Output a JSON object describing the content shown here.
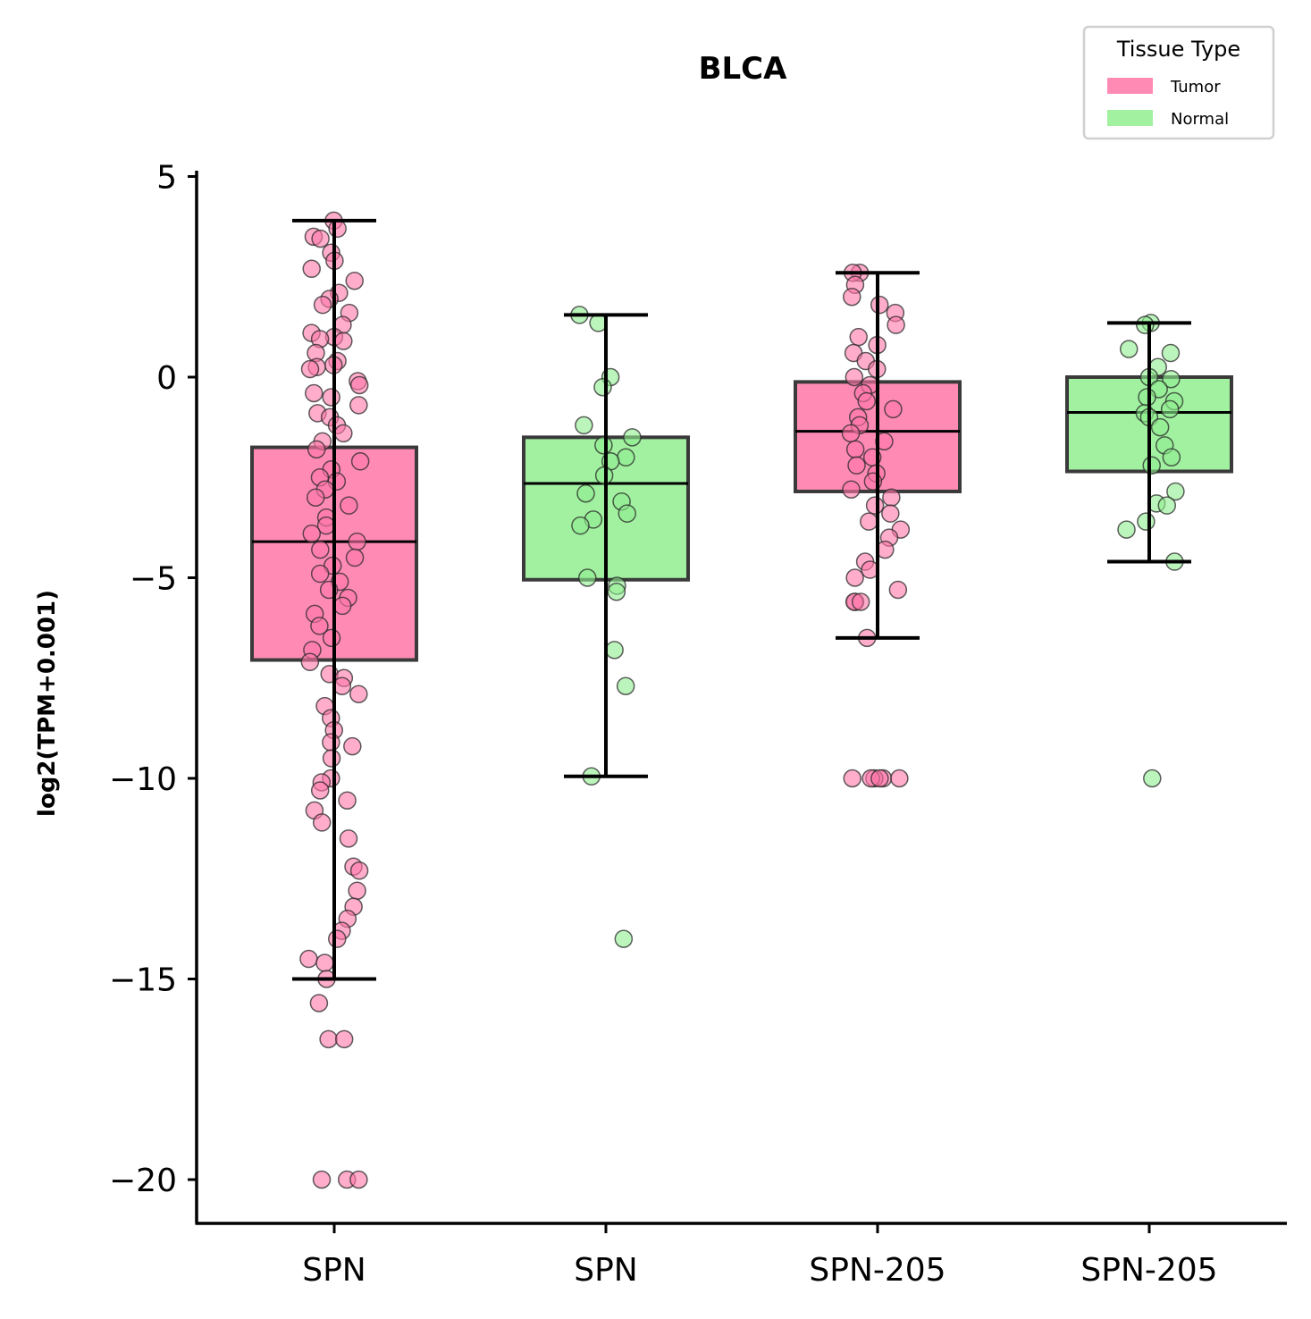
{
  "chart_data": {
    "type": "box",
    "title": "BLCA",
    "xlabel": "",
    "ylabel": "log2(TPM+0.001)",
    "ylim": [
      -21.2,
      5.2
    ],
    "yticks": [
      5,
      0,
      -5,
      -10,
      -15,
      -20
    ],
    "ytick_labels": [
      "5",
      "0",
      "−5",
      "−10",
      "−15",
      "−20"
    ],
    "categories": [
      "SPN",
      "SPN",
      "SPN-205",
      "SPN-205"
    ],
    "legend": {
      "title": "Tissue Type",
      "placement": "top-right",
      "entries": [
        {
          "label": "Tumor",
          "color": "#ff77a8"
        },
        {
          "label": "Normal",
          "color": "#90ee90"
        }
      ]
    },
    "series": [
      {
        "category": "SPN",
        "tissue": "Tumor",
        "color": "#ff77a8",
        "q1": -7.05,
        "median": -4.1,
        "q3": -1.75,
        "whisker_low": -15.0,
        "whisker_high": 3.9,
        "points": [
          3.9,
          3.7,
          3.5,
          3.45,
          3.1,
          2.9,
          2.7,
          2.4,
          2.1,
          1.95,
          1.8,
          1.6,
          1.3,
          1.1,
          1.0,
          0.95,
          0.9,
          0.6,
          0.4,
          0.3,
          0.25,
          0.2,
          -0.1,
          -0.2,
          -0.4,
          -0.5,
          -0.7,
          -0.9,
          -1.0,
          -1.2,
          -1.4,
          -1.6,
          -1.8,
          -2.1,
          -2.3,
          -2.5,
          -2.6,
          -2.8,
          -3.0,
          -3.2,
          -3.5,
          -3.7,
          -3.9,
          -4.1,
          -4.3,
          -4.5,
          -4.7,
          -4.9,
          -5.1,
          -5.3,
          -5.5,
          -5.7,
          -5.9,
          -6.2,
          -6.5,
          -6.8,
          -7.1,
          -7.4,
          -7.5,
          -7.7,
          -7.9,
          -8.2,
          -8.5,
          -8.8,
          -9.1,
          -9.2,
          -9.5,
          -10.0,
          -10.1,
          -10.3,
          -10.55,
          -10.8,
          -11.1,
          -11.5,
          -12.2,
          -12.3,
          -12.8,
          -13.2,
          -13.5,
          -13.8,
          -14.0,
          -14.5,
          -14.6,
          -15.0,
          -15.6,
          -16.5,
          -16.5,
          -20.0,
          -20.0,
          -20.0
        ]
      },
      {
        "category": "SPN",
        "tissue": "Normal",
        "color": "#90ee90",
        "q1": -5.05,
        "median": -2.65,
        "q3": -1.5,
        "whisker_low": -9.95,
        "whisker_high": 1.55,
        "points": [
          1.55,
          1.35,
          0.0,
          -0.25,
          -1.2,
          -1.5,
          -1.7,
          -2.0,
          -2.1,
          -2.45,
          -2.9,
          -3.1,
          -3.4,
          -3.55,
          -3.7,
          -5.0,
          -5.2,
          -5.35,
          -6.8,
          -7.7,
          -9.95,
          -14.0
        ]
      },
      {
        "category": "SPN-205",
        "tissue": "Tumor",
        "color": "#ff77a8",
        "q1": -2.85,
        "median": -1.35,
        "q3": -0.12,
        "whisker_low": -6.5,
        "whisker_high": 2.6,
        "points": [
          2.6,
          2.6,
          2.3,
          2.0,
          1.8,
          1.6,
          1.3,
          1.0,
          0.8,
          0.6,
          0.4,
          0.2,
          0.0,
          -0.2,
          -0.4,
          -0.6,
          -0.8,
          -1.0,
          -1.2,
          -1.4,
          -1.6,
          -1.8,
          -2.0,
          -2.2,
          -2.4,
          -2.6,
          -2.8,
          -3.0,
          -3.2,
          -3.4,
          -3.6,
          -3.8,
          -4.0,
          -4.3,
          -4.6,
          -4.8,
          -5.0,
          -5.3,
          -5.6,
          -5.6,
          -5.6,
          -6.5,
          -10.0,
          -10.0,
          -10.0,
          -10.0,
          -10.0,
          -10.0
        ]
      },
      {
        "category": "SPN-205",
        "tissue": "Normal",
        "color": "#90ee90",
        "q1": -2.35,
        "median": -0.88,
        "q3": 0.0,
        "whisker_low": -4.6,
        "whisker_high": 1.35,
        "points": [
          1.35,
          1.3,
          0.7,
          0.6,
          0.25,
          0.0,
          -0.05,
          -0.3,
          -0.5,
          -0.6,
          -0.8,
          -0.9,
          -1.0,
          -1.25,
          -1.7,
          -2.0,
          -2.2,
          -2.85,
          -3.15,
          -3.2,
          -3.6,
          -3.8,
          -4.6,
          -10.0
        ]
      }
    ]
  }
}
